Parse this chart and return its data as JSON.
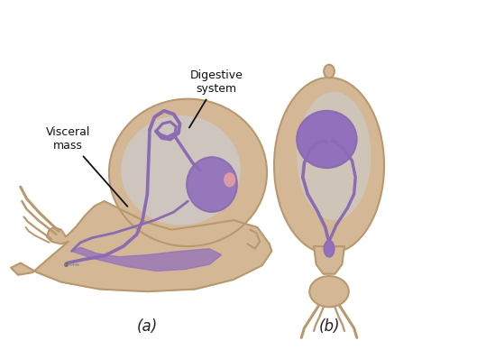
{
  "background_color": "#ffffff",
  "snail_body_color": "#d4b896",
  "snail_body_edge_color": "#b8986e",
  "digestive_color": "#8B6BB1",
  "digestive_fill_color": "#9370BB",
  "highlight_color": "#c8d8f0",
  "pink_accent": "#e8a0a0",
  "label_a": "(a)",
  "label_b": "(b)",
  "label_visceral": "Visceral\nmass",
  "label_digestive": "Digestive\nsystem",
  "fig_width": 5.39,
  "fig_height": 3.88,
  "dpi": 100
}
